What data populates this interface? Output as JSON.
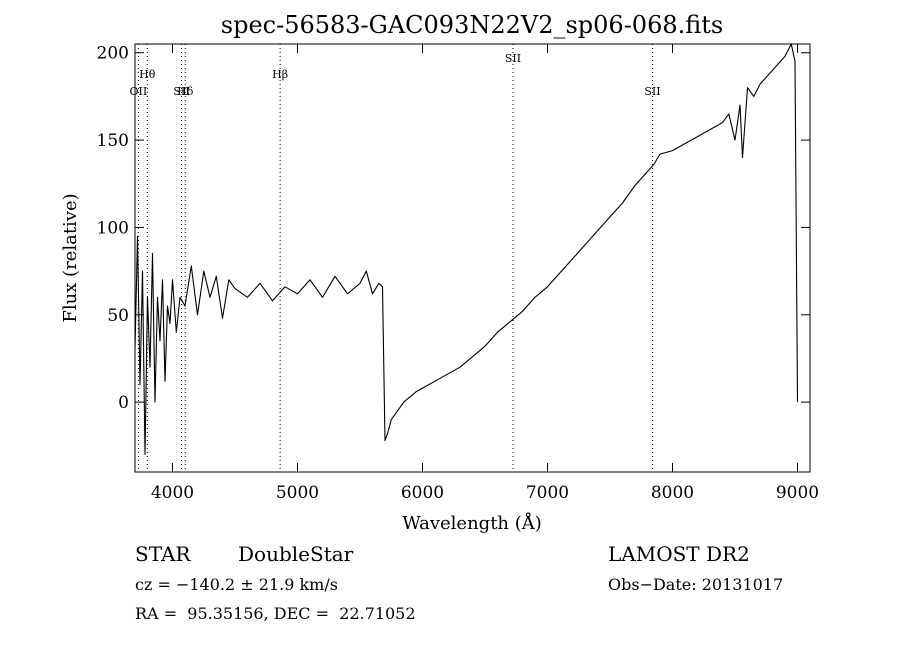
{
  "chart_data": {
    "type": "line",
    "title": "spec-56583-GAC093N22V2_sp06-068.fits",
    "xlabel": "Wavelength (Å)",
    "ylabel": "Flux (relative)",
    "xlim": [
      3700,
      9100
    ],
    "ylim": [
      -40,
      205
    ],
    "xticks": [
      4000,
      5000,
      6000,
      7000,
      8000,
      9000
    ],
    "yticks": [
      0,
      50,
      100,
      150,
      200
    ],
    "grid": false,
    "line_color": "#000000",
    "line_markers": [
      {
        "label": "OII",
        "wavelength": 3727
      },
      {
        "label": "Hθ",
        "wavelength": 3798
      },
      {
        "label": "SII",
        "wavelength": 4072
      },
      {
        "label": "Hδ",
        "wavelength": 4102
      },
      {
        "label": "Hβ",
        "wavelength": 4861
      },
      {
        "label": "SII",
        "wavelength": 6724
      },
      {
        "label": "SII",
        "wavelength": 7840
      }
    ],
    "series": [
      {
        "x": [
          3700,
          3720,
          3740,
          3760,
          3780,
          3800,
          3820,
          3840,
          3860,
          3880,
          3900,
          3920,
          3940,
          3960,
          3980,
          4000,
          4030,
          4060,
          4100,
          4150,
          4200,
          4250,
          4300,
          4350,
          4400,
          4450,
          4500,
          4600,
          4700,
          4800,
          4900,
          5000,
          5100,
          5200,
          5300,
          5400,
          5500,
          5550,
          5600,
          5650,
          5680,
          5700,
          5720,
          5750,
          5800,
          5850,
          5900,
          5950,
          6000,
          6100,
          6200,
          6300,
          6400,
          6500,
          6600,
          6700,
          6800,
          6900,
          7000,
          7100,
          7200,
          7300,
          7400,
          7500,
          7600,
          7700,
          7800,
          7850,
          7900,
          8000,
          8100,
          8200,
          8300,
          8400,
          8450,
          8500,
          8540,
          8560,
          8600,
          8650,
          8700,
          8800,
          8900,
          8950,
          8980,
          9000
        ],
        "values": [
          30,
          95,
          10,
          75,
          -30,
          60,
          20,
          85,
          0,
          60,
          35,
          70,
          12,
          55,
          45,
          70,
          40,
          60,
          55,
          78,
          50,
          75,
          60,
          72,
          48,
          70,
          65,
          60,
          68,
          58,
          66,
          62,
          70,
          60,
          72,
          62,
          68,
          75,
          62,
          68,
          66,
          -22,
          -18,
          -10,
          -5,
          0,
          3,
          6,
          8,
          12,
          16,
          20,
          26,
          32,
          40,
          46,
          52,
          60,
          66,
          74,
          82,
          90,
          98,
          106,
          114,
          124,
          132,
          136,
          142,
          144,
          148,
          152,
          156,
          160,
          165,
          150,
          170,
          140,
          180,
          175,
          182,
          190,
          198,
          205,
          195,
          0
        ]
      }
    ]
  },
  "footer": {
    "class_label": "STAR",
    "subclass_label": "DoubleStar",
    "survey": "LAMOST DR2",
    "redshift": "cz = −140.2 ± 21.9 km/s",
    "obs_date": "Obs−Date: 20131017",
    "coords": "RA =  95.35156, DEC =  22.71052"
  }
}
